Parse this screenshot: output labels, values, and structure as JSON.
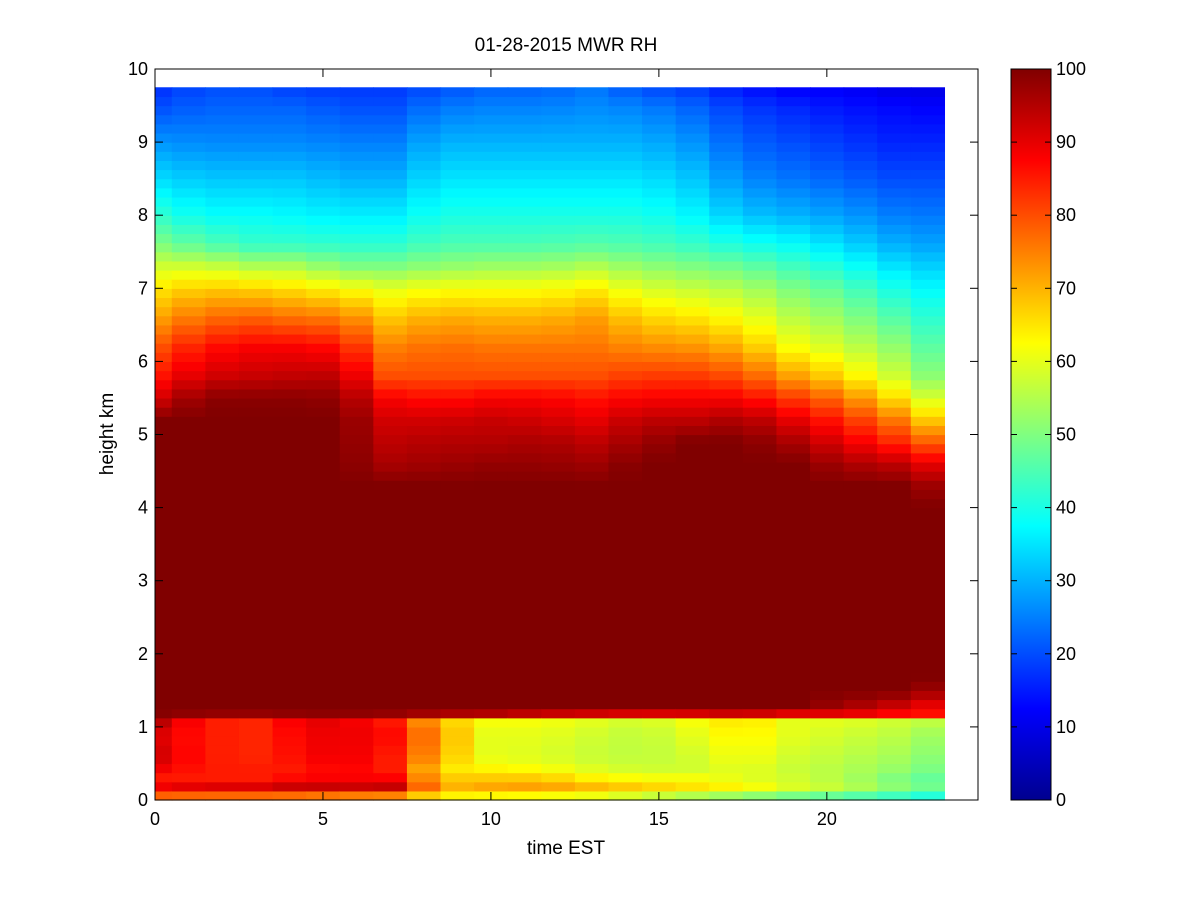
{
  "chart_data": {
    "type": "heatmap",
    "title": "01-28-2015 MWR RH",
    "xlabel": "time EST",
    "ylabel": "height km",
    "xlim": [
      0,
      24.5
    ],
    "ylim": [
      0,
      10
    ],
    "x_ticks": [
      0,
      5,
      10,
      15,
      20
    ],
    "y_ticks": [
      0,
      1,
      2,
      3,
      4,
      5,
      6,
      7,
      8,
      9,
      10
    ],
    "x_tick_labels": [
      "0",
      "5",
      "10",
      "15",
      "20"
    ],
    "y_tick_labels": [
      "0",
      "1",
      "2",
      "3",
      "4",
      "5",
      "6",
      "7",
      "8",
      "9",
      "10"
    ],
    "time_step_hours": 1,
    "time_columns": 24,
    "height_top_km": 9.75,
    "colormap": "jet",
    "colorbar": {
      "range": [
        0,
        100
      ],
      "ticks": [
        0,
        10,
        20,
        30,
        40,
        50,
        60,
        70,
        80,
        90,
        100
      ],
      "tick_labels": [
        "0",
        "10",
        "20",
        "30",
        "40",
        "50",
        "60",
        "70",
        "80",
        "90",
        "100"
      ]
    },
    "grid": false,
    "profile_heights_km": [
      0.0,
      0.1,
      0.2,
      0.3,
      0.4,
      0.6,
      0.9,
      1.1,
      1.2,
      1.3,
      1.5,
      1.7,
      2.0,
      4.0,
      4.3,
      4.6,
      4.9,
      5.2,
      5.5,
      5.8,
      6.2,
      6.6,
      7.0,
      7.3,
      7.6,
      8.0,
      8.5,
      9.0,
      9.5,
      9.75
    ],
    "time_samples_h": [
      0,
      1.5,
      3,
      4.5,
      5.5,
      7,
      8.5,
      10,
      11.5,
      13,
      14.5,
      16,
      17.5,
      19,
      20.5,
      22,
      23.5
    ],
    "rh_profiles": [
      [
        75,
        80,
        90,
        85,
        88,
        92,
        90,
        95,
        100,
        100,
        100,
        100,
        100,
        100,
        100,
        100,
        100,
        100,
        92,
        86,
        80,
        72,
        65,
        58,
        50,
        42,
        34,
        27,
        20,
        17
      ],
      [
        70,
        82,
        92,
        85,
        85,
        85,
        85,
        85,
        100,
        100,
        100,
        100,
        100,
        100,
        100,
        100,
        100,
        100,
        99,
        92,
        86,
        77,
        68,
        58,
        46,
        38,
        32,
        26,
        22,
        20
      ],
      [
        70,
        82,
        92,
        85,
        85,
        84,
        84,
        84,
        100,
        100,
        100,
        100,
        100,
        100,
        100,
        100,
        100,
        100,
        99,
        93,
        88,
        78,
        67,
        55,
        43,
        38,
        32,
        26,
        22,
        20
      ],
      [
        68,
        82,
        95,
        88,
        85,
        87,
        88,
        90,
        100,
        100,
        100,
        100,
        100,
        100,
        100,
        100,
        100,
        100,
        99,
        94,
        88,
        76,
        65,
        55,
        43,
        37,
        32,
        26,
        22,
        18
      ],
      [
        68,
        80,
        94,
        88,
        88,
        90,
        90,
        90,
        100,
        100,
        100,
        100,
        100,
        100,
        100,
        100,
        100,
        100,
        98,
        94,
        86,
        76,
        63,
        50,
        42,
        36,
        30,
        25,
        20,
        18
      ],
      [
        66,
        80,
        95,
        88,
        85,
        85,
        87,
        85,
        100,
        100,
        100,
        100,
        100,
        100,
        100,
        96,
        94,
        92,
        88,
        80,
        75,
        68,
        60,
        50,
        42,
        36,
        30,
        25,
        20,
        18
      ],
      [
        62,
        65,
        70,
        68,
        64,
        70,
        72,
        68,
        100,
        100,
        100,
        100,
        100,
        100,
        100,
        97,
        95,
        92,
        86,
        80,
        77,
        71,
        62,
        52,
        45,
        40,
        35,
        30,
        24,
        20
      ],
      [
        60,
        65,
        72,
        68,
        64,
        60,
        60,
        62,
        100,
        100,
        100,
        100,
        100,
        100,
        100,
        98,
        95,
        93,
        88,
        80,
        76,
        70,
        62,
        53,
        45,
        40,
        35,
        30,
        25,
        22
      ],
      [
        60,
        64,
        73,
        68,
        63,
        59,
        60,
        62,
        98,
        100,
        100,
        100,
        100,
        100,
        100,
        98,
        96,
        92,
        88,
        80,
        76,
        70,
        62,
        53,
        45,
        40,
        35,
        30,
        25,
        22
      ],
      [
        58,
        63,
        70,
        64,
        60,
        57,
        58,
        60,
        97,
        100,
        100,
        100,
        100,
        100,
        100,
        97,
        94,
        90,
        86,
        80,
        76,
        72,
        64,
        55,
        46,
        40,
        35,
        30,
        26,
        24
      ],
      [
        55,
        60,
        68,
        62,
        58,
        56,
        56,
        58,
        96,
        100,
        100,
        100,
        100,
        100,
        100,
        100,
        97,
        94,
        88,
        82,
        74,
        67,
        59,
        52,
        45,
        40,
        35,
        30,
        25,
        20
      ],
      [
        50,
        58,
        66,
        62,
        58,
        58,
        60,
        62,
        96,
        100,
        100,
        100,
        100,
        100,
        100,
        100,
        100,
        94,
        88,
        82,
        73,
        65,
        57,
        50,
        43,
        37,
        32,
        27,
        22,
        18
      ],
      [
        48,
        55,
        64,
        60,
        60,
        62,
        64,
        66,
        97,
        100,
        100,
        100,
        100,
        100,
        100,
        100,
        100,
        96,
        88,
        80,
        70,
        62,
        55,
        48,
        40,
        32,
        26,
        22,
        18,
        14
      ],
      [
        45,
        52,
        60,
        58,
        57,
        58,
        60,
        60,
        95,
        100,
        100,
        100,
        100,
        100,
        100,
        100,
        96,
        90,
        82,
        72,
        62,
        56,
        50,
        44,
        38,
        30,
        24,
        20,
        16,
        12
      ],
      [
        42,
        50,
        57,
        55,
        55,
        56,
        58,
        60,
        95,
        97,
        100,
        100,
        100,
        100,
        100,
        96,
        90,
        84,
        76,
        66,
        58,
        52,
        46,
        40,
        34,
        28,
        22,
        18,
        14,
        12
      ],
      [
        40,
        46,
        52,
        50,
        52,
        54,
        56,
        58,
        92,
        93,
        100,
        100,
        100,
        100,
        100,
        94,
        84,
        76,
        66,
        58,
        52,
        46,
        40,
        35,
        30,
        25,
        20,
        16,
        13,
        10
      ],
      [
        36,
        42,
        48,
        46,
        48,
        50,
        52,
        56,
        90,
        88,
        96,
        100,
        100,
        100,
        96,
        88,
        76,
        64,
        55,
        48,
        44,
        40,
        36,
        32,
        28,
        24,
        20,
        16,
        12,
        10
      ]
    ]
  }
}
